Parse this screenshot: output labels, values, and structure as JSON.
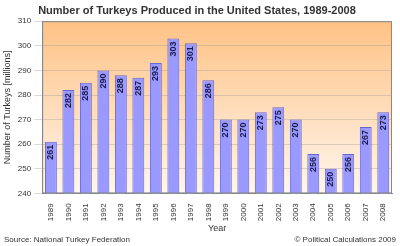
{
  "chart_data": {
    "type": "bar",
    "title": "Number of Turkeys Produced in the United States, 1989-2008",
    "x_label": "Year",
    "y_label": "Number of Turkeys [millions]",
    "categories": [
      "1989",
      "1990",
      "1991",
      "1992",
      "1993",
      "1994",
      "1995",
      "1996",
      "1997",
      "1998",
      "1999",
      "2000",
      "2001",
      "2002",
      "2003",
      "2004",
      "2005",
      "2006",
      "2007",
      "2008"
    ],
    "values": [
      261,
      282,
      285,
      290,
      288,
      287,
      293,
      303,
      301,
      286,
      270,
      270,
      273,
      275,
      270,
      256,
      250,
      256,
      267,
      273
    ],
    "color": "#9999ff",
    "ylim": [
      240,
      310
    ],
    "yticks": [
      240,
      250,
      260,
      270,
      280,
      290,
      300,
      310
    ],
    "grid": true,
    "data_labels": true,
    "annotations": [
      "Source: National Turkey Federation",
      "© Political Calculations 2009"
    ]
  }
}
